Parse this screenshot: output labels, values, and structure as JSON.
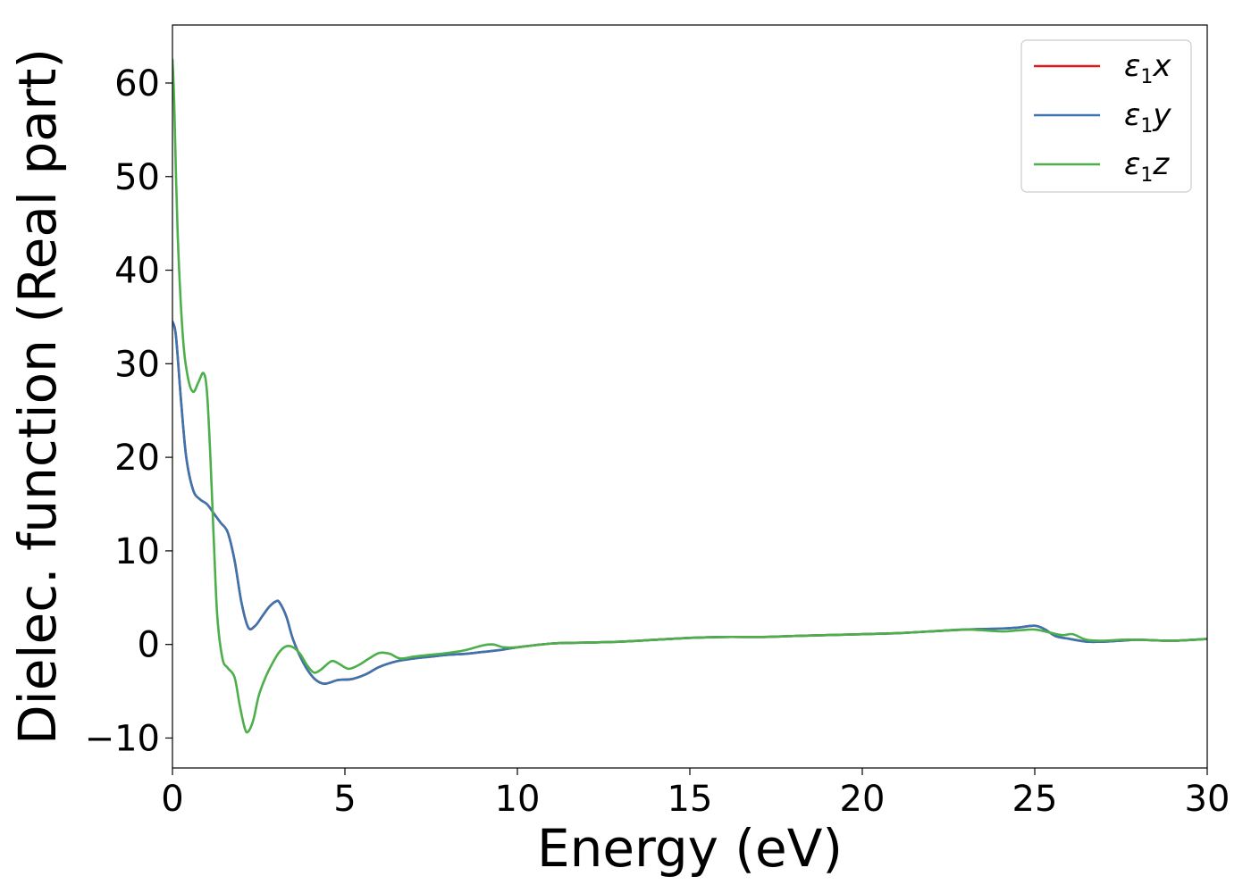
{
  "chart_data": {
    "type": "line",
    "xlabel": "Energy (eV)",
    "ylabel": "Dielec. function (Real part)",
    "xlim": [
      0,
      30
    ],
    "ylim": [
      -13.2,
      66.2
    ],
    "xticks": [
      0,
      5,
      10,
      15,
      20,
      25,
      30
    ],
    "xtick_labels": [
      "0",
      "5",
      "10",
      "15",
      "20",
      "25",
      "30"
    ],
    "yticks": [
      -10,
      0,
      10,
      20,
      30,
      40,
      50,
      60
    ],
    "ytick_labels": [
      "−10",
      "0",
      "10",
      "20",
      "30",
      "40",
      "50",
      "60"
    ],
    "grid": false,
    "legend_position": "top-right",
    "series": [
      {
        "name": "ε₁x",
        "name_main": "ε",
        "name_sub": "1",
        "name_tail": "x",
        "color": "#e41a1c",
        "x": [
          0,
          0.1,
          0.25,
          0.4,
          0.6,
          0.8,
          1.0,
          1.2,
          1.4,
          1.6,
          1.8,
          2.0,
          2.2,
          2.4,
          2.6,
          2.8,
          3.0,
          3.1,
          3.3,
          3.5,
          3.8,
          4.1,
          4.4,
          4.8,
          5.2,
          5.6,
          6.0,
          6.5,
          7.0,
          7.5,
          8.0,
          8.5,
          9.0,
          9.5,
          10.0,
          11.0,
          12.0,
          13.0,
          14.0,
          15.0,
          16.0,
          17.0,
          18.0,
          19.0,
          20.0,
          21.0,
          22.0,
          23.0,
          24.0,
          24.5,
          25.0,
          25.3,
          25.6,
          26.0,
          26.5,
          27.0,
          27.5,
          28.0,
          29.0,
          30.0
        ],
        "y": [
          34.5,
          33,
          26,
          20,
          16.5,
          15.5,
          15,
          14,
          13,
          12,
          9,
          4.5,
          1.8,
          2,
          3,
          4,
          4.6,
          4.5,
          3,
          0.5,
          -2,
          -3.6,
          -4.2,
          -3.8,
          -3.7,
          -3.2,
          -2.4,
          -1.8,
          -1.5,
          -1.3,
          -1.1,
          -1.0,
          -0.8,
          -0.6,
          -0.3,
          0.1,
          0.2,
          0.3,
          0.5,
          0.7,
          0.8,
          0.8,
          0.9,
          1.0,
          1.1,
          1.2,
          1.4,
          1.6,
          1.7,
          1.8,
          2.0,
          1.6,
          0.9,
          0.6,
          0.3,
          0.3,
          0.4,
          0.5,
          0.4,
          0.6
        ]
      },
      {
        "name": "ε₁y",
        "name_main": "ε",
        "name_sub": "1",
        "name_tail": "y",
        "color": "#3b75af",
        "x": [
          0,
          0.1,
          0.25,
          0.4,
          0.6,
          0.8,
          1.0,
          1.2,
          1.4,
          1.6,
          1.8,
          2.0,
          2.2,
          2.4,
          2.6,
          2.8,
          3.0,
          3.1,
          3.3,
          3.5,
          3.8,
          4.1,
          4.4,
          4.8,
          5.2,
          5.6,
          6.0,
          6.5,
          7.0,
          7.5,
          8.0,
          8.5,
          9.0,
          9.5,
          10.0,
          11.0,
          12.0,
          13.0,
          14.0,
          15.0,
          16.0,
          17.0,
          18.0,
          19.0,
          20.0,
          21.0,
          22.0,
          23.0,
          24.0,
          24.5,
          25.0,
          25.3,
          25.6,
          26.0,
          26.5,
          27.0,
          27.5,
          28.0,
          29.0,
          30.0
        ],
        "y": [
          34.5,
          33,
          26,
          20,
          16.5,
          15.5,
          15,
          14,
          13,
          12,
          9,
          4.5,
          1.8,
          2,
          3,
          4,
          4.6,
          4.5,
          3,
          0.5,
          -2,
          -3.6,
          -4.2,
          -3.8,
          -3.7,
          -3.2,
          -2.4,
          -1.8,
          -1.5,
          -1.3,
          -1.1,
          -1.0,
          -0.8,
          -0.6,
          -0.3,
          0.1,
          0.2,
          0.3,
          0.5,
          0.7,
          0.8,
          0.8,
          0.9,
          1.0,
          1.1,
          1.2,
          1.4,
          1.6,
          1.7,
          1.8,
          2.0,
          1.6,
          0.9,
          0.6,
          0.3,
          0.3,
          0.4,
          0.5,
          0.4,
          0.6
        ]
      },
      {
        "name": "ε₁z",
        "name_main": "ε",
        "name_sub": "1",
        "name_tail": "z",
        "color": "#4daf4a",
        "x": [
          0,
          0.05,
          0.15,
          0.3,
          0.45,
          0.6,
          0.75,
          0.9,
          1.0,
          1.1,
          1.2,
          1.3,
          1.45,
          1.6,
          1.8,
          1.95,
          2.1,
          2.2,
          2.35,
          2.5,
          2.7,
          2.9,
          3.1,
          3.3,
          3.5,
          3.7,
          3.9,
          4.1,
          4.3,
          4.6,
          4.8,
          5.1,
          5.4,
          5.7,
          6.0,
          6.3,
          6.6,
          7.0,
          7.5,
          8.0,
          8.5,
          9.0,
          9.3,
          9.6,
          10.0,
          11.0,
          12.0,
          13.0,
          14.0,
          15.0,
          16.0,
          17.0,
          18.0,
          19.0,
          20.0,
          21.0,
          22.0,
          23.0,
          24.0,
          24.5,
          25.0,
          25.4,
          25.8,
          26.1,
          26.5,
          27.0,
          27.5,
          28.0,
          29.0,
          30.0
        ],
        "y": [
          62.5,
          58,
          44,
          33,
          28.5,
          27,
          28,
          29,
          27,
          20,
          11,
          3,
          -1.5,
          -2.5,
          -3.5,
          -6.5,
          -9,
          -9.3,
          -8,
          -5.5,
          -3.5,
          -2,
          -0.8,
          -0.2,
          -0.3,
          -1,
          -2.2,
          -3,
          -2.7,
          -1.8,
          -2,
          -2.6,
          -2.2,
          -1.5,
          -0.9,
          -1.0,
          -1.5,
          -1.3,
          -1.1,
          -0.9,
          -0.6,
          -0.1,
          0.0,
          -0.3,
          -0.3,
          0.1,
          0.2,
          0.3,
          0.5,
          0.7,
          0.8,
          0.8,
          0.9,
          1.0,
          1.1,
          1.2,
          1.4,
          1.6,
          1.4,
          1.5,
          1.6,
          1.3,
          1.0,
          1.1,
          0.5,
          0.4,
          0.5,
          0.5,
          0.4,
          0.6
        ]
      }
    ]
  }
}
